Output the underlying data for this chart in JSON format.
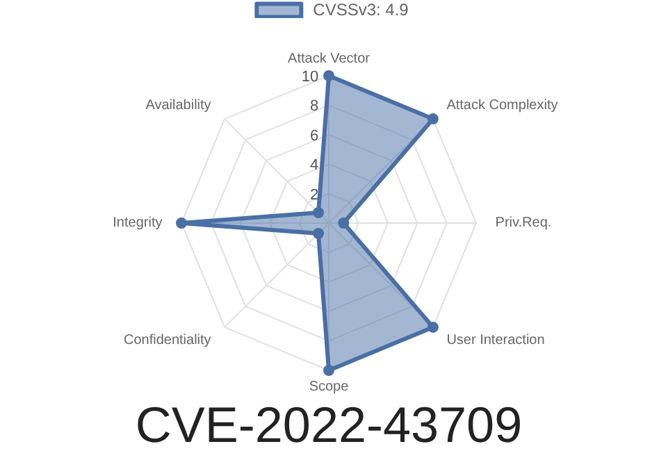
{
  "chart_data": {
    "type": "radar",
    "annotations": [
      "CVE-2022-43709"
    ],
    "categories": [
      "Attack Vector",
      "Attack Complexity",
      "Priv.Req.",
      "User Interaction",
      "Scope",
      "Confidentiality",
      "Integrity",
      "Availability"
    ],
    "series": [
      {
        "name": "CVSSv3: 4.9",
        "color": "#4a6fa5",
        "values": [
          10,
          10,
          1,
          10,
          10,
          1,
          10,
          1
        ]
      }
    ],
    "ylim": [
      0,
      10
    ],
    "yticks": [
      2,
      4,
      6,
      8,
      10
    ],
    "grid": true,
    "legend": "top",
    "marker": "circle"
  }
}
